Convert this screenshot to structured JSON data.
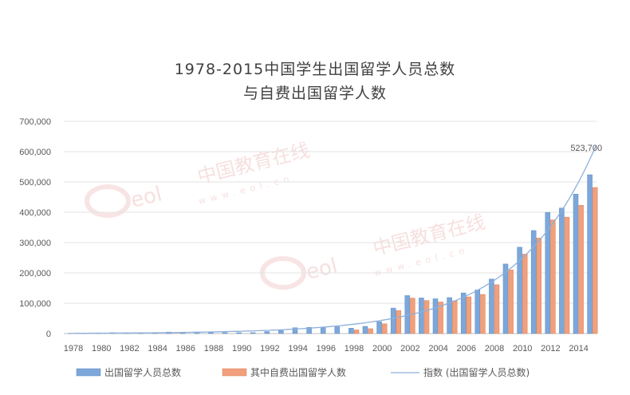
{
  "chart_data": {
    "type": "bar",
    "title_line1": "1978-2015中国学生出国留学人员总数",
    "title_line2": "与自费出国留学人数",
    "ylim": [
      0,
      700000
    ],
    "y_ticks": [
      "0",
      "100,000",
      "200,000",
      "300,000",
      "400,000",
      "500,000",
      "600,000",
      "700,000"
    ],
    "x_tick_labels": [
      "1978",
      "1980",
      "1982",
      "1984",
      "1986",
      "1988",
      "1990",
      "1992",
      "1994",
      "1996",
      "1998",
      "2000",
      "2002",
      "2004",
      "2006",
      "2008",
      "2010",
      "2012",
      "2014"
    ],
    "categories": [
      "1978",
      "1979",
      "1980",
      "1981",
      "1982",
      "1983",
      "1984",
      "1985",
      "1986",
      "1987",
      "1988",
      "1989",
      "1990",
      "1991",
      "1992",
      "1993",
      "1994",
      "1995",
      "1996",
      "1997",
      "1998",
      "1999",
      "2000",
      "2001",
      "2002",
      "2003",
      "2004",
      "2005",
      "2006",
      "2007",
      "2008",
      "2009",
      "2010",
      "2011",
      "2012",
      "2013",
      "2014",
      "2015"
    ],
    "series": [
      {
        "name": "出国留学人员总数",
        "color": "#7da7d9",
        "values": [
          860,
          1777,
          2124,
          2922,
          2326,
          2633,
          3073,
          4888,
          4676,
          4703,
          3786,
          3329,
          2950,
          2900,
          6540,
          10742,
          19071,
          20381,
          20905,
          22410,
          17622,
          23749,
          38989,
          83973,
          125179,
          117307,
          114682,
          118515,
          134000,
          144000,
          179800,
          229300,
          284700,
          339700,
          399600,
          413900,
          459800,
          523700
        ]
      },
      {
        "name": "其中自费出国留学人数",
        "color": "#f0a07c",
        "values": [
          0,
          0,
          0,
          0,
          0,
          0,
          0,
          0,
          0,
          0,
          0,
          0,
          0,
          0,
          0,
          0,
          0,
          0,
          0,
          0,
          12000,
          16000,
          32000,
          76000,
          117000,
          109000,
          104000,
          108000,
          121000,
          129000,
          161000,
          210000,
          262000,
          315000,
          375000,
          384000,
          423000,
          481700
        ]
      }
    ],
    "trendline": {
      "name": "指数 (出国留学人员总数)",
      "color": "#8db0dc"
    },
    "annotation": {
      "text": "523,700"
    },
    "legend": {
      "position": "bottom",
      "items": [
        "出国留学人员总数",
        "其中自费出国留学人数",
        "指数 (出国留学人员总数)"
      ]
    },
    "grid": true
  },
  "watermark": {
    "text1": "中国教育在线",
    "text2": "www.eol.cn",
    "logo": "eol"
  }
}
